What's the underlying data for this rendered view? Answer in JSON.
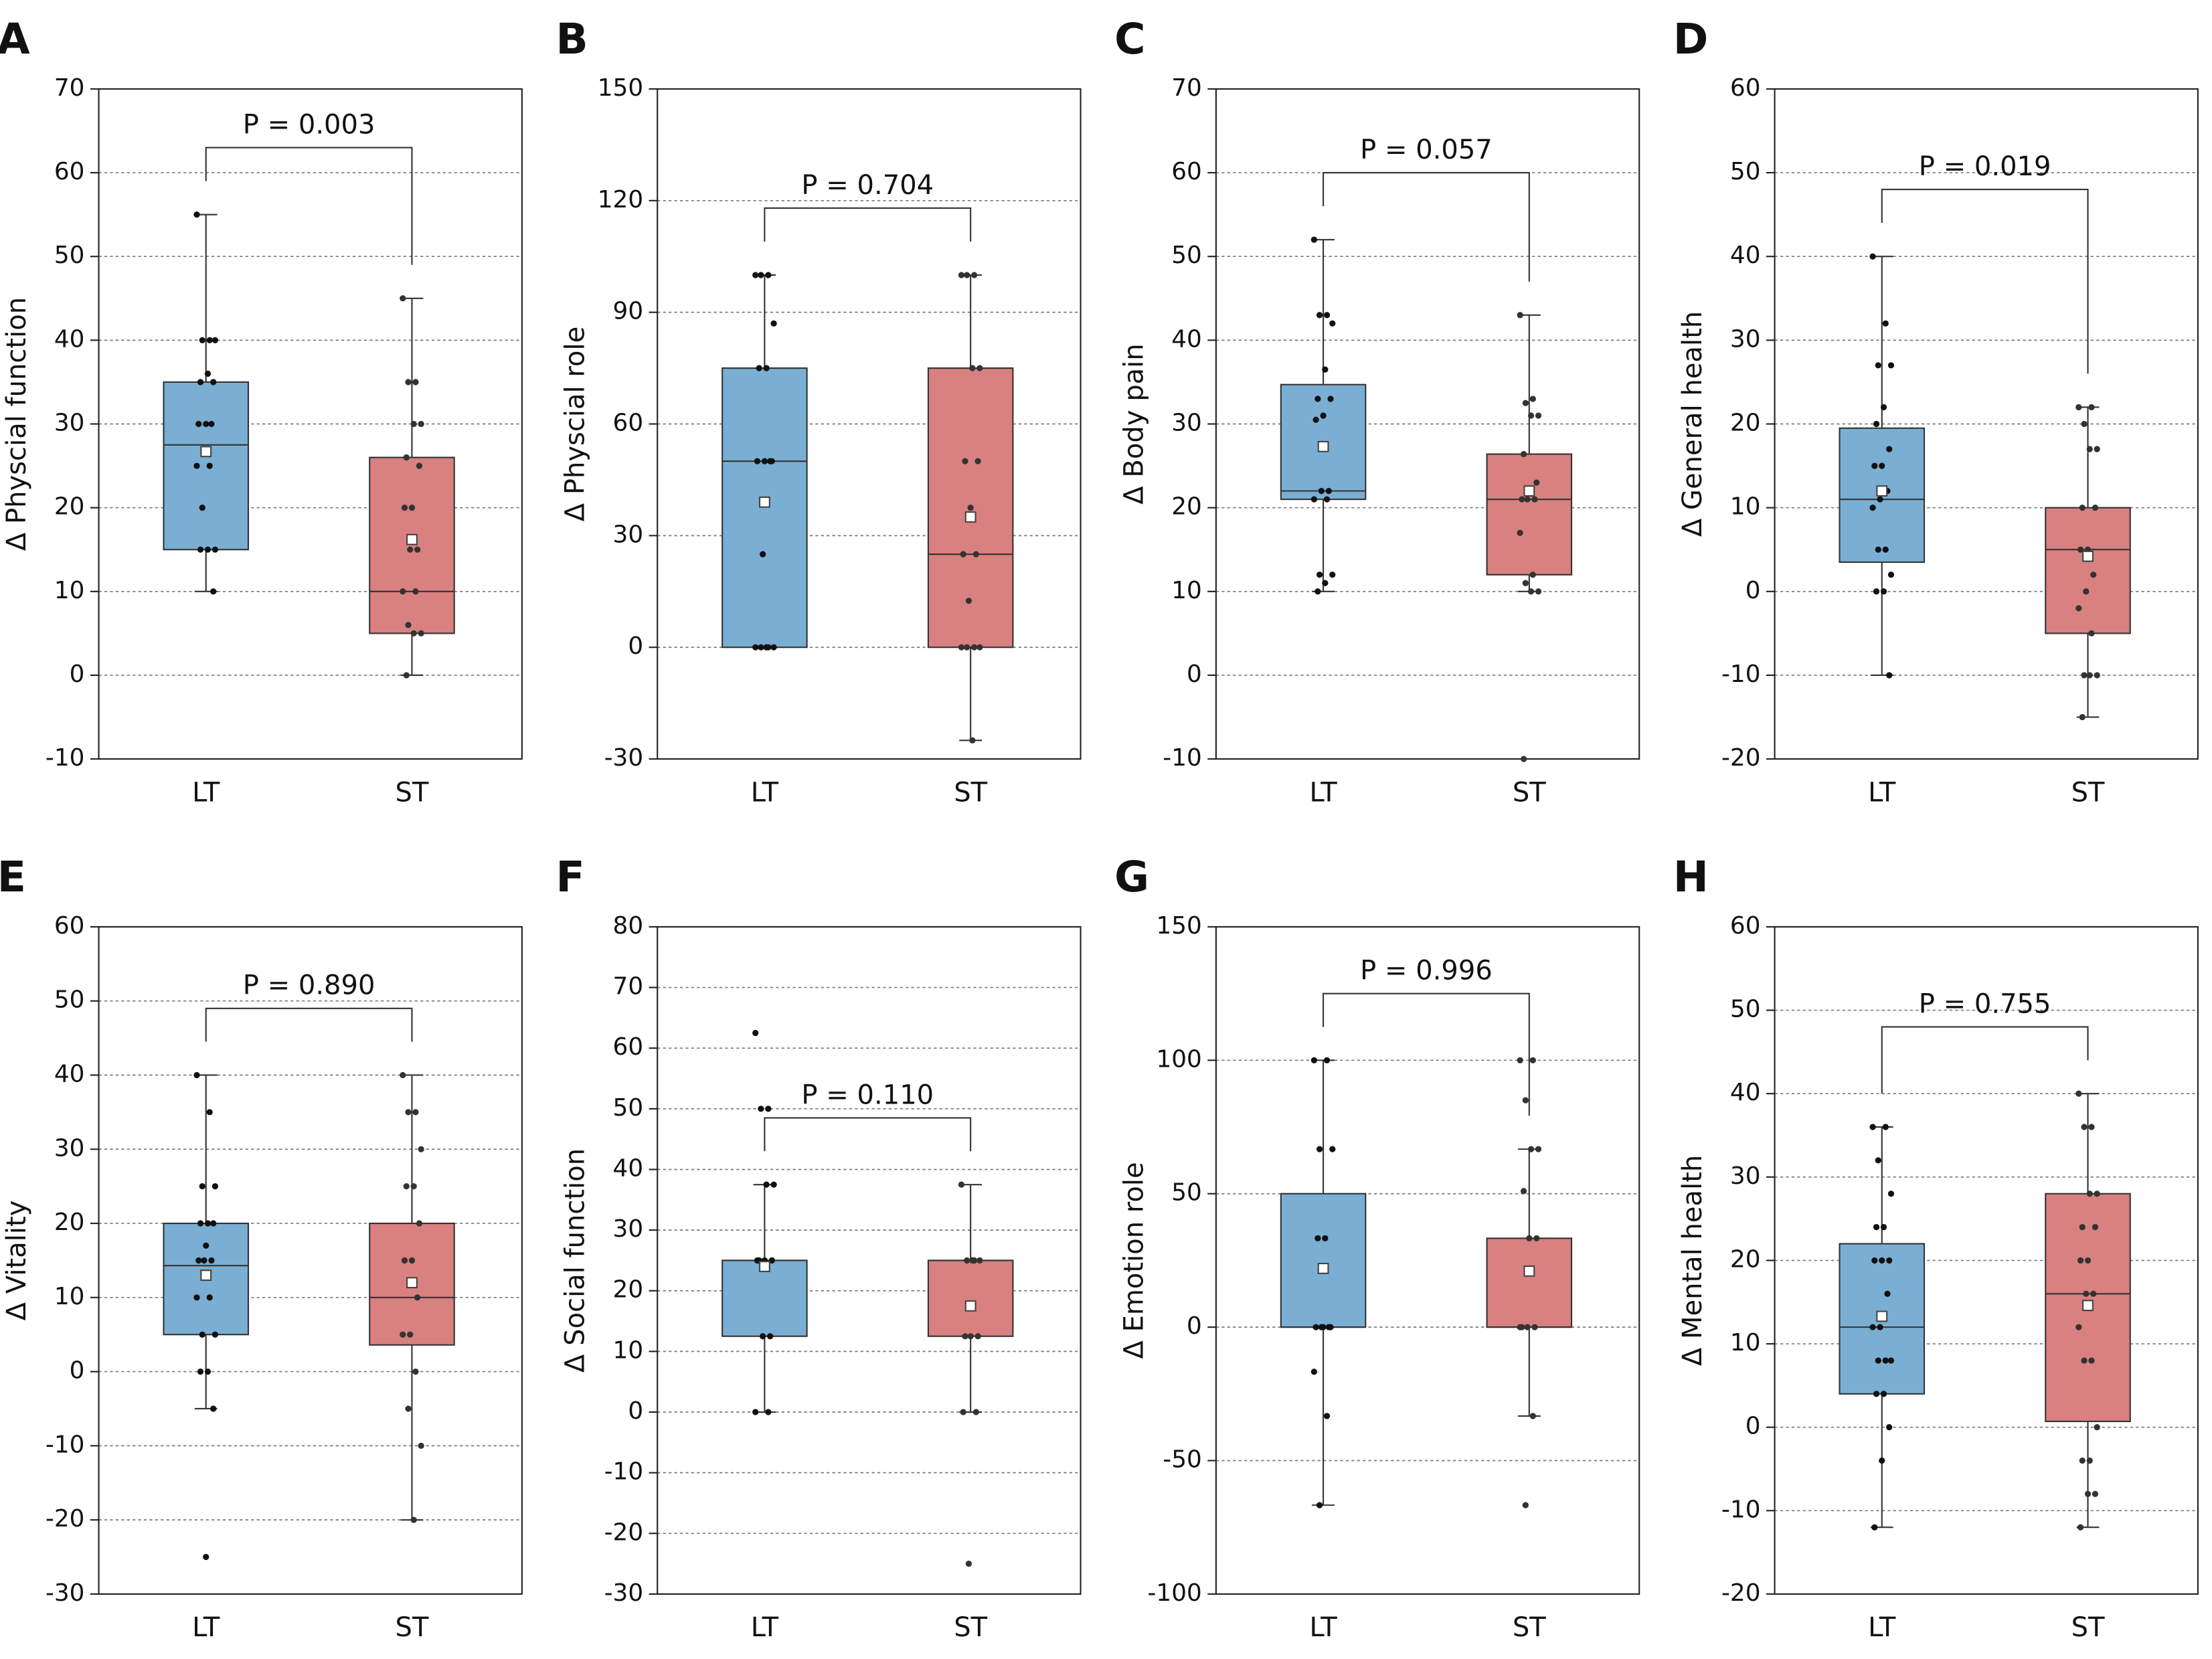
{
  "chart_data": [
    {
      "type": "box",
      "panel": "A",
      "ylabel": "Δ Physcial function",
      "annotation": "P = 0.003",
      "categories": [
        "LT",
        "ST"
      ],
      "ylim": [
        -10,
        70
      ],
      "yticks": [
        -10,
        0,
        10,
        20,
        30,
        40,
        50,
        60,
        70
      ],
      "grid": true,
      "boxes": [
        {
          "color": "#7aafd3",
          "min": 10,
          "q1": 15,
          "median": 27.5,
          "q3": 35,
          "max": 55,
          "mean": 26.7,
          "points": [
            55,
            40,
            40,
            40,
            36,
            35,
            35,
            30,
            30,
            30,
            27,
            25,
            25,
            20,
            15,
            15,
            15,
            10
          ]
        },
        {
          "color": "#d98080",
          "min": 0,
          "q1": 5,
          "median": 10,
          "q3": 26,
          "max": 45,
          "mean": 16.2,
          "points": [
            45,
            35,
            35,
            30,
            30,
            26,
            25,
            20,
            20,
            15,
            15,
            10,
            10,
            6,
            5,
            5,
            0
          ]
        }
      ]
    },
    {
      "type": "box",
      "panel": "B",
      "ylabel": "Δ Physcial role",
      "annotation": "P = 0.704",
      "categories": [
        "LT",
        "ST"
      ],
      "ylim": [
        -30,
        150
      ],
      "yticks": [
        -30,
        0,
        30,
        60,
        90,
        120,
        150
      ],
      "grid": true,
      "boxes": [
        {
          "color": "#7aafd3",
          "min": 0,
          "q1": 0,
          "median": 50,
          "q3": 75,
          "max": 100,
          "mean": 39,
          "points": [
            100,
            100,
            100,
            87,
            75,
            75,
            50,
            50,
            50,
            50,
            25,
            0,
            0,
            0,
            0,
            0
          ]
        },
        {
          "color": "#d98080",
          "min": -25,
          "q1": 0,
          "median": 25,
          "q3": 75,
          "max": 100,
          "mean": 35,
          "points": [
            100,
            100,
            100,
            75,
            75,
            50,
            50,
            37.5,
            25,
            25,
            12.5,
            0,
            0,
            0,
            0,
            -25
          ]
        }
      ]
    },
    {
      "type": "box",
      "panel": "C",
      "ylabel": "Δ Body pain",
      "annotation": "P = 0.057",
      "categories": [
        "LT",
        "ST"
      ],
      "ylim": [
        -10,
        70
      ],
      "yticks": [
        -10,
        0,
        10,
        20,
        30,
        40,
        50,
        60,
        70
      ],
      "grid": true,
      "boxes": [
        {
          "color": "#7aafd3",
          "min": 10,
          "q1": 21,
          "median": 22,
          "q3": 34.7,
          "max": 52,
          "mean": 27.3,
          "points": [
            52,
            43,
            43,
            42,
            36.5,
            33,
            33,
            31,
            30.5,
            22,
            22,
            21,
            21,
            12,
            12,
            11,
            10
          ]
        },
        {
          "color": "#d98080",
          "min": 10,
          "q1": 12,
          "median": 21,
          "q3": 26.4,
          "max": 43,
          "mean": 22,
          "points": [
            43,
            33,
            32.5,
            31,
            31,
            26.4,
            23,
            22,
            21,
            21,
            21,
            17,
            12,
            11,
            10,
            10,
            -10
          ]
        }
      ]
    },
    {
      "type": "box",
      "panel": "D",
      "ylabel": "Δ General health",
      "annotation": "P = 0.019",
      "categories": [
        "LT",
        "ST"
      ],
      "ylim": [
        -20,
        60
      ],
      "yticks": [
        -20,
        -10,
        0,
        10,
        20,
        30,
        40,
        50,
        60
      ],
      "grid": true,
      "boxes": [
        {
          "color": "#7aafd3",
          "min": -10,
          "q1": 3.5,
          "median": 11,
          "q3": 19.5,
          "max": 40,
          "mean": 12,
          "points": [
            40,
            32,
            27,
            27,
            22,
            20,
            17,
            15,
            15,
            12,
            11,
            10,
            5,
            5,
            2,
            0,
            0,
            -10
          ]
        },
        {
          "color": "#d98080",
          "min": -15,
          "q1": -5,
          "median": 5,
          "q3": 10,
          "max": 22,
          "mean": 4.2,
          "points": [
            22,
            22,
            20,
            17,
            17,
            10,
            10,
            5,
            5,
            2,
            0,
            -2,
            -5,
            -10,
            -10,
            -10,
            -15
          ]
        }
      ]
    },
    {
      "type": "box",
      "panel": "E",
      "ylabel": "Δ Vitality",
      "annotation": "P = 0.890",
      "categories": [
        "LT",
        "ST"
      ],
      "ylim": [
        -30,
        60
      ],
      "yticks": [
        -30,
        -20,
        -10,
        0,
        10,
        20,
        30,
        40,
        50,
        60
      ],
      "grid": true,
      "boxes": [
        {
          "color": "#7aafd3",
          "min": -5,
          "q1": 5,
          "median": 14.3,
          "q3": 20,
          "max": 40,
          "mean": 13,
          "points": [
            40,
            35,
            25,
            25,
            20,
            20,
            20,
            17,
            15,
            15,
            15,
            10,
            10,
            5,
            5,
            0,
            0,
            -5,
            -25
          ]
        },
        {
          "color": "#d98080",
          "min": -20,
          "q1": 3.6,
          "median": 10,
          "q3": 20,
          "max": 40,
          "mean": 12,
          "points": [
            40,
            35,
            35,
            30,
            25,
            25,
            20,
            15,
            15,
            10,
            5,
            5,
            0,
            -5,
            -10,
            -20
          ]
        }
      ]
    },
    {
      "type": "box",
      "panel": "F",
      "ylabel": "Δ Social function",
      "annotation": "P = 0.110",
      "categories": [
        "LT",
        "ST"
      ],
      "ylim": [
        -30,
        80
      ],
      "yticks": [
        -30,
        -20,
        -10,
        0,
        10,
        20,
        30,
        40,
        50,
        60,
        70,
        80
      ],
      "grid": true,
      "boxes": [
        {
          "color": "#7aafd3",
          "min": 0,
          "q1": 12.5,
          "median": 25,
          "q3": 25,
          "max": 37.5,
          "mean": 24,
          "points": [
            62.5,
            50,
            50,
            37.5,
            37.5,
            25,
            25,
            25,
            25,
            12.5,
            12.5,
            0,
            0
          ]
        },
        {
          "color": "#d98080",
          "min": 0,
          "q1": 12.5,
          "median": 25,
          "q3": 25,
          "max": 37.5,
          "mean": 17.5,
          "points": [
            37.5,
            25,
            25,
            25,
            25,
            12.5,
            12.5,
            12.5,
            0,
            0,
            -25
          ]
        }
      ]
    },
    {
      "type": "box",
      "panel": "G",
      "ylabel": "Δ Emotion role",
      "annotation": "P = 0.996",
      "categories": [
        "LT",
        "ST"
      ],
      "ylim": [
        -100,
        150
      ],
      "yticks": [
        -100,
        -50,
        0,
        50,
        100,
        150
      ],
      "grid": true,
      "boxes": [
        {
          "color": "#7aafd3",
          "min": -66.7,
          "q1": 0,
          "median": 0,
          "q3": 50,
          "max": 100,
          "mean": 22,
          "points": [
            100,
            100,
            66.7,
            66.7,
            33.3,
            33.3,
            0,
            0,
            0,
            0,
            0,
            -16.7,
            -33.3,
            -66.7
          ]
        },
        {
          "color": "#d98080",
          "min": -33.3,
          "q1": 0,
          "median": 0,
          "q3": 33.3,
          "max": 66.7,
          "mean": 21,
          "points": [
            100,
            100,
            85,
            66.7,
            66.7,
            51,
            33.3,
            33.3,
            0,
            0,
            0,
            0,
            -33.3,
            -66.7
          ]
        }
      ]
    },
    {
      "type": "box",
      "panel": "H",
      "ylabel": "Δ Mental health",
      "annotation": "P = 0.755",
      "categories": [
        "LT",
        "ST"
      ],
      "ylim": [
        -20,
        60
      ],
      "yticks": [
        -20,
        -10,
        0,
        10,
        20,
        30,
        40,
        50,
        60
      ],
      "grid": true,
      "boxes": [
        {
          "color": "#7aafd3",
          "min": -12,
          "q1": 4,
          "median": 12,
          "q3": 22,
          "max": 36,
          "mean": 13.3,
          "points": [
            36,
            36,
            32,
            28,
            24,
            24,
            20,
            20,
            20,
            16,
            12,
            12,
            8,
            8,
            8,
            4,
            4,
            0,
            -4,
            -12
          ]
        },
        {
          "color": "#d98080",
          "min": -12,
          "q1": 0.7,
          "median": 16,
          "q3": 28,
          "max": 40,
          "mean": 14.6,
          "points": [
            40,
            36,
            36,
            28,
            28,
            24,
            24,
            20,
            20,
            16,
            16,
            12,
            8,
            8,
            0,
            -4,
            -4,
            -8,
            -8,
            -12
          ]
        }
      ]
    }
  ]
}
